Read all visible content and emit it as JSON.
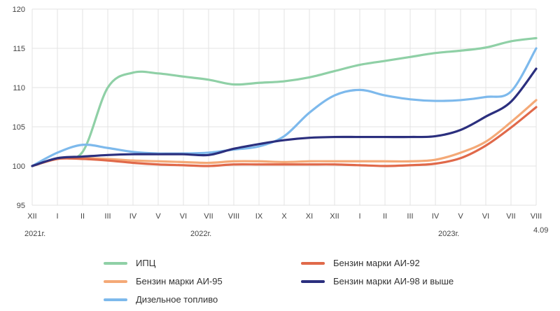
{
  "chart_data": {
    "type": "line",
    "ylim": [
      95,
      120
    ],
    "yticks": [
      95,
      100,
      105,
      110,
      115,
      120
    ],
    "x_tick_labels": [
      "XII",
      "I",
      "II",
      "III",
      "IV",
      "V",
      "VI",
      "VII",
      "VIII",
      "IX",
      "X",
      "XI",
      "XII",
      "I",
      "II",
      "III",
      "IV",
      "V",
      "VI",
      "VII",
      "VIII"
    ],
    "year_labels": [
      "2021г.",
      "2022г.",
      "2023г."
    ],
    "end_label": "4.09",
    "grid": true,
    "legend_position": "bottom",
    "series": [
      {
        "name": "ИПЦ",
        "color": "#8fd0a6",
        "values": [
          100,
          101,
          101.8,
          110,
          111.9,
          111.8,
          111.4,
          111,
          110.4,
          110.6,
          110.8,
          111.3,
          112.1,
          112.9,
          113.4,
          113.9,
          114.4,
          114.7,
          115.1,
          115.9,
          116.3
        ]
      },
      {
        "name": "Бензин марки АИ-92",
        "color": "#e0694a",
        "values": [
          100,
          100.9,
          100.9,
          100.7,
          100.4,
          100.2,
          100.1,
          100,
          100.2,
          100.2,
          100.2,
          100.2,
          100.2,
          100.1,
          100,
          100.1,
          100.3,
          101,
          102.6,
          104.9,
          107.5
        ]
      },
      {
        "name": "Бензин марки АИ-95",
        "color": "#f4a977",
        "values": [
          100,
          100.9,
          101,
          100.9,
          100.7,
          100.6,
          100.5,
          100.4,
          100.6,
          100.6,
          100.5,
          100.6,
          100.6,
          100.6,
          100.6,
          100.6,
          100.8,
          101.7,
          103.1,
          105.6,
          108.4
        ]
      },
      {
        "name": "Бензин марки АИ-98 и выше",
        "color": "#2b2f7e",
        "values": [
          100,
          101,
          101.2,
          101.4,
          101.5,
          101.5,
          101.5,
          101.4,
          102.2,
          102.8,
          103.3,
          103.6,
          103.7,
          103.7,
          103.7,
          103.7,
          103.8,
          104.6,
          106.3,
          108.2,
          112.4
        ]
      },
      {
        "name": "Дизельное топливо",
        "color": "#7db9ec",
        "values": [
          100,
          101.7,
          102.7,
          102.3,
          101.8,
          101.6,
          101.6,
          101.7,
          102.1,
          102.5,
          103.8,
          106.8,
          109,
          109.7,
          109,
          108.5,
          108.3,
          108.4,
          108.8,
          109.5,
          115
        ]
      }
    ]
  }
}
